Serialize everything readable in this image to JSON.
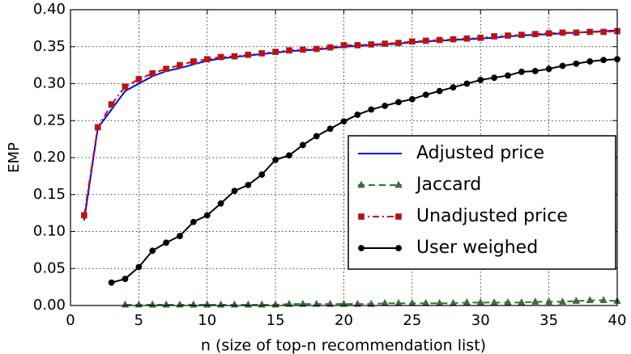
{
  "chart_data": {
    "type": "line",
    "xlabel": "n (size of top-n recommendation list)",
    "ylabel": "EMP",
    "x": [
      1,
      2,
      3,
      4,
      5,
      6,
      7,
      8,
      9,
      10,
      11,
      12,
      13,
      14,
      15,
      16,
      17,
      18,
      19,
      20,
      21,
      22,
      23,
      24,
      25,
      26,
      27,
      28,
      29,
      30,
      31,
      32,
      33,
      34,
      35,
      36,
      37,
      38,
      39,
      40
    ],
    "series": [
      {
        "name": "Adjusted price",
        "color": "#0000ff",
        "dash": "solid",
        "marker": "none",
        "values": [
          0.115,
          0.24,
          0.265,
          0.29,
          0.3,
          0.31,
          0.317,
          0.321,
          0.326,
          0.331,
          0.334,
          0.336,
          0.338,
          0.34,
          0.342,
          0.344,
          0.345,
          0.346,
          0.348,
          0.35,
          0.351,
          0.352,
          0.353,
          0.354,
          0.356,
          0.357,
          0.358,
          0.359,
          0.36,
          0.361,
          0.362,
          0.364,
          0.365,
          0.366,
          0.367,
          0.368,
          0.369,
          0.37,
          0.371,
          0.372
        ]
      },
      {
        "name": "Jaccard",
        "color": "#2a7a2a",
        "dash": "dashed",
        "marker": "triangle",
        "values": [
          null,
          null,
          null,
          0.001,
          0.001,
          0.001,
          0.001,
          0.001,
          0.001,
          0.001,
          0.001,
          0.001,
          0.001,
          0.001,
          0.001,
          0.002,
          0.002,
          0.002,
          0.002,
          0.002,
          0.002,
          0.002,
          0.003,
          0.003,
          0.003,
          0.003,
          0.003,
          0.003,
          0.004,
          0.004,
          0.004,
          0.004,
          0.004,
          0.005,
          0.005,
          0.005,
          0.006,
          0.007,
          0.007,
          0.006
        ]
      },
      {
        "name": "Unadjusted price",
        "color": "#dd0000",
        "dash": "dashdot",
        "marker": "square",
        "values": [
          0.122,
          0.241,
          0.272,
          0.296,
          0.306,
          0.314,
          0.32,
          0.325,
          0.33,
          0.333,
          0.336,
          0.337,
          0.339,
          0.341,
          0.343,
          0.345,
          0.346,
          0.347,
          0.349,
          0.352,
          0.352,
          0.353,
          0.354,
          0.355,
          0.357,
          0.358,
          0.359,
          0.36,
          0.361,
          0.362,
          0.364,
          0.365,
          0.366,
          0.367,
          0.368,
          0.369,
          0.369,
          0.37,
          0.37,
          0.371
        ]
      },
      {
        "name": "User weighed",
        "color": "#000000",
        "dash": "solid",
        "marker": "circle",
        "values": [
          null,
          null,
          0.031,
          0.036,
          0.052,
          0.074,
          0.085,
          0.094,
          0.113,
          0.122,
          0.138,
          0.155,
          0.163,
          0.177,
          0.197,
          0.203,
          0.217,
          0.229,
          0.239,
          0.249,
          0.258,
          0.265,
          0.27,
          0.275,
          0.279,
          0.285,
          0.29,
          0.295,
          0.3,
          0.305,
          0.308,
          0.311,
          0.316,
          0.317,
          0.32,
          0.324,
          0.327,
          0.33,
          0.332,
          0.333
        ]
      }
    ],
    "xlim": [
      0,
      40
    ],
    "xticks": [
      0,
      5,
      10,
      15,
      20,
      25,
      30,
      35,
      40
    ],
    "ylim": [
      0,
      0.4
    ],
    "yticks": [
      {
        "value": 0,
        "label": "0.00"
      },
      {
        "value": 0.05,
        "label": "0.05"
      },
      {
        "value": 0.1,
        "label": "0.10"
      },
      {
        "value": 0.15,
        "label": "0.15"
      },
      {
        "value": 0.2,
        "label": "0.20"
      },
      {
        "value": 0.25,
        "label": "0.25"
      },
      {
        "value": 0.3,
        "label": "0.30"
      },
      {
        "value": 0.35,
        "label": "0.35"
      },
      {
        "value": 0.4,
        "label": "0.40"
      }
    ],
    "grid": true,
    "legend": "lower right"
  }
}
